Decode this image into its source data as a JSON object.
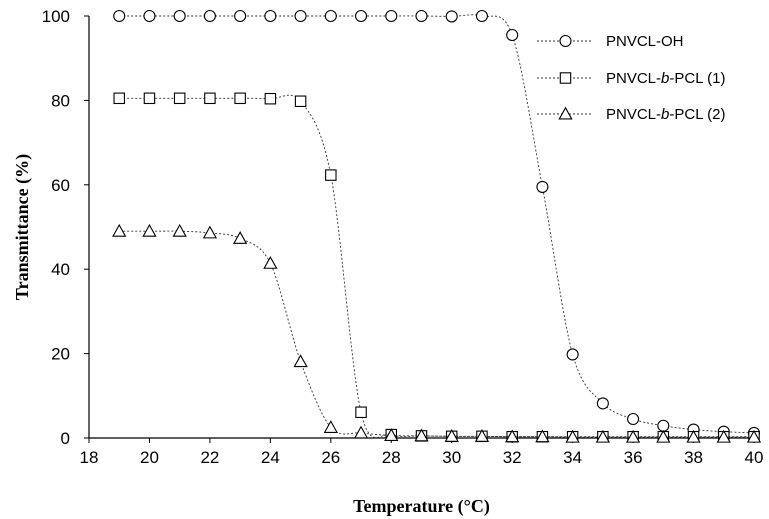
{
  "chart_data": {
    "type": "line",
    "xlabel": "Temperature (°C)",
    "ylabel": "Transmittance (%)",
    "xlim": [
      18,
      40
    ],
    "ylim": [
      0,
      100
    ],
    "xticks": [
      18,
      20,
      22,
      24,
      26,
      28,
      30,
      32,
      34,
      36,
      38,
      40
    ],
    "yticks": [
      0,
      20,
      40,
      60,
      80,
      100
    ],
    "grid": false,
    "legend_position": "top-right",
    "series": [
      {
        "name_parts": [
          "PNVCL-OH"
        ],
        "marker": "circle",
        "x": [
          19,
          20,
          21,
          22,
          23,
          24,
          25,
          26,
          27,
          28,
          29,
          30,
          31,
          32,
          33,
          34,
          35,
          36,
          37,
          38,
          39,
          40
        ],
        "y": [
          100,
          100,
          100,
          100,
          100,
          100,
          100,
          100,
          100,
          100,
          100,
          99.9,
          100,
          95.5,
          59.5,
          19.8,
          8.2,
          4.5,
          2.9,
          2.0,
          1.5,
          1.2
        ]
      },
      {
        "name_parts": [
          "PNVCL-",
          "b",
          "-PCL (1)"
        ],
        "marker": "square",
        "x": [
          19,
          20,
          21,
          22,
          23,
          24,
          25,
          26,
          27,
          28,
          29,
          30,
          31,
          32,
          33,
          34,
          35,
          36,
          37,
          38,
          39,
          40
        ],
        "y": [
          80.5,
          80.5,
          80.5,
          80.5,
          80.5,
          80.4,
          79.8,
          62.3,
          6.1,
          0.8,
          0.5,
          0.4,
          0.4,
          0.3,
          0.3,
          0.3,
          0.3,
          0.3,
          0.3,
          0.3,
          0.3,
          0.3
        ]
      },
      {
        "name_parts": [
          "PNVCL-",
          "b",
          "-PCL (2)"
        ],
        "marker": "triangle",
        "x": [
          19,
          20,
          21,
          22,
          23,
          24,
          25,
          26,
          27,
          28,
          29,
          30,
          31,
          32,
          33,
          34,
          35,
          36,
          37,
          38,
          39,
          40
        ],
        "y": [
          49,
          49,
          49,
          48.6,
          47.3,
          41.4,
          18.1,
          2.5,
          1.2,
          0.6,
          0.5,
          0.4,
          0.4,
          0.3,
          0.3,
          0.2,
          0.2,
          0.2,
          0.2,
          0.2,
          0.2,
          0.2
        ]
      }
    ]
  }
}
